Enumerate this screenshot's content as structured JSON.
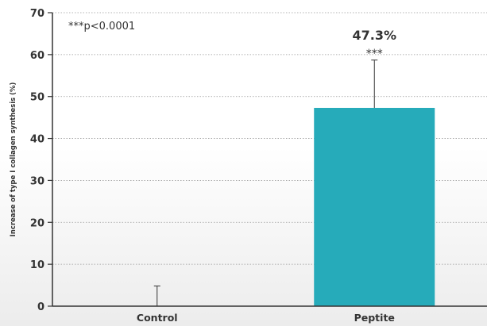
{
  "chart_data": {
    "type": "bar",
    "categories": [
      "Control",
      "Peptite"
    ],
    "values": [
      0,
      47.3
    ],
    "error_upper": [
      4.8,
      58.7
    ],
    "ylabel": "Increase of type I collagen synthesis (%)",
    "xlabel": "",
    "ylim": [
      0,
      70
    ],
    "yticks": [
      0,
      10,
      20,
      30,
      40,
      50,
      60,
      70
    ],
    "grid": true,
    "bar_color": "#26abba",
    "annotation": "***p<0.0001",
    "data_labels": [
      "",
      "47.3%"
    ],
    "significance_labels": [
      "",
      "***"
    ]
  }
}
